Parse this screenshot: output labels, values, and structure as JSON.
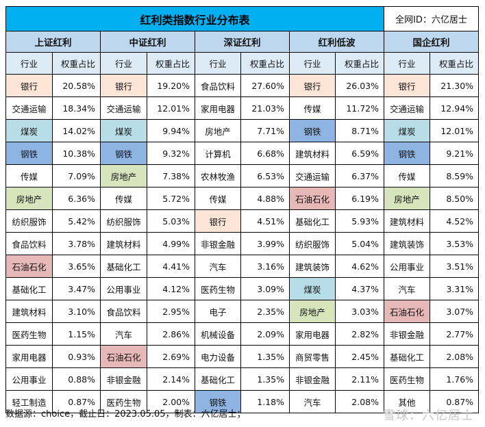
{
  "title": "红利类指数行业分布表",
  "author_id": "全网ID：六亿居士",
  "column_headers": {
    "industry": "行业",
    "weight": "权重占比"
  },
  "highlight_colors": {
    "peach": "#fce4d6",
    "lightblue": "#b7dee8",
    "blue": "#8eb4e3",
    "green": "#d8e4bc",
    "pink": "#e6b8b7"
  },
  "indices": [
    {
      "name": "上证红利",
      "rows": [
        {
          "industry": "银行",
          "weight": "20.58%",
          "color": "peach"
        },
        {
          "industry": "交通运输",
          "weight": "18.34%",
          "color": ""
        },
        {
          "industry": "煤炭",
          "weight": "14.02%",
          "color": "lightblue"
        },
        {
          "industry": "钢铁",
          "weight": "10.38%",
          "color": "blue"
        },
        {
          "industry": "传媒",
          "weight": "7.09%",
          "color": ""
        },
        {
          "industry": "房地产",
          "weight": "6.36%",
          "color": "green"
        },
        {
          "industry": "纺织服饰",
          "weight": "5.42%",
          "color": ""
        },
        {
          "industry": "食品饮料",
          "weight": "3.78%",
          "color": ""
        },
        {
          "industry": "石油石化",
          "weight": "3.65%",
          "color": "pink"
        },
        {
          "industry": "基础化工",
          "weight": "3.47%",
          "color": ""
        },
        {
          "industry": "建筑材料",
          "weight": "3.10%",
          "color": ""
        },
        {
          "industry": "医药生物",
          "weight": "1.15%",
          "color": ""
        },
        {
          "industry": "家用电器",
          "weight": "0.93%",
          "color": ""
        },
        {
          "industry": "公用事业",
          "weight": "0.88%",
          "color": ""
        },
        {
          "industry": "轻工制造",
          "weight": "0.87%",
          "color": ""
        }
      ]
    },
    {
      "name": "中证红利",
      "rows": [
        {
          "industry": "银行",
          "weight": "19.20%",
          "color": "peach"
        },
        {
          "industry": "交通运输",
          "weight": "12.01%",
          "color": ""
        },
        {
          "industry": "煤炭",
          "weight": "9.94%",
          "color": "lightblue"
        },
        {
          "industry": "钢铁",
          "weight": "9.32%",
          "color": "blue"
        },
        {
          "industry": "房地产",
          "weight": "7.38%",
          "color": "green"
        },
        {
          "industry": "传媒",
          "weight": "5.72%",
          "color": ""
        },
        {
          "industry": "纺织服饰",
          "weight": "5.03%",
          "color": ""
        },
        {
          "industry": "建筑材料",
          "weight": "4.99%",
          "color": ""
        },
        {
          "industry": "基础化工",
          "weight": "4.41%",
          "color": ""
        },
        {
          "industry": "公用事业",
          "weight": "4.12%",
          "color": ""
        },
        {
          "industry": "食品饮料",
          "weight": "2.95%",
          "color": ""
        },
        {
          "industry": "汽车",
          "weight": "2.86%",
          "color": ""
        },
        {
          "industry": "石油石化",
          "weight": "2.69%",
          "color": "pink"
        },
        {
          "industry": "非银金融",
          "weight": "2.14%",
          "color": ""
        },
        {
          "industry": "医药生物",
          "weight": "2.00%",
          "color": ""
        }
      ]
    },
    {
      "name": "深证红利",
      "rows": [
        {
          "industry": "食品饮料",
          "weight": "27.60%",
          "color": ""
        },
        {
          "industry": "家用电器",
          "weight": "21.03%",
          "color": ""
        },
        {
          "industry": "房地产",
          "weight": "7.71%",
          "color": ""
        },
        {
          "industry": "计算机",
          "weight": "6.68%",
          "color": ""
        },
        {
          "industry": "农林牧渔",
          "weight": "6.53%",
          "color": ""
        },
        {
          "industry": "传媒",
          "weight": "4.88%",
          "color": ""
        },
        {
          "industry": "银行",
          "weight": "4.51%",
          "color": "peach"
        },
        {
          "industry": "非银金融",
          "weight": "3.99%",
          "color": ""
        },
        {
          "industry": "汽车",
          "weight": "3.16%",
          "color": ""
        },
        {
          "industry": "医药生物",
          "weight": "3.09%",
          "color": ""
        },
        {
          "industry": "电子",
          "weight": "2.35%",
          "color": ""
        },
        {
          "industry": "机械设备",
          "weight": "2.09%",
          "color": ""
        },
        {
          "industry": "电力设备",
          "weight": "1.35%",
          "color": ""
        },
        {
          "industry": "基础化工",
          "weight": "1.35%",
          "color": ""
        },
        {
          "industry": "钢铁",
          "weight": "1.18%",
          "color": "blue"
        }
      ]
    },
    {
      "name": "红利低波",
      "rows": [
        {
          "industry": "银行",
          "weight": "26.03%",
          "color": "peach"
        },
        {
          "industry": "传媒",
          "weight": "11.72%",
          "color": ""
        },
        {
          "industry": "钢铁",
          "weight": "8.71%",
          "color": "blue"
        },
        {
          "industry": "建筑材料",
          "weight": "6.59%",
          "color": ""
        },
        {
          "industry": "交通运输",
          "weight": "6.37%",
          "color": ""
        },
        {
          "industry": "石油石化",
          "weight": "6.19%",
          "color": "pink"
        },
        {
          "industry": "基础化工",
          "weight": "5.93%",
          "color": ""
        },
        {
          "industry": "纺织服饰",
          "weight": "5.04%",
          "color": ""
        },
        {
          "industry": "建筑装饰",
          "weight": "4.62%",
          "color": ""
        },
        {
          "industry": "煤炭",
          "weight": "4.37%",
          "color": "lightblue"
        },
        {
          "industry": "房地产",
          "weight": "3.03%",
          "color": "green"
        },
        {
          "industry": "家用电器",
          "weight": "2.82%",
          "color": ""
        },
        {
          "industry": "商贸零售",
          "weight": "2.45%",
          "color": ""
        },
        {
          "industry": "非银金融",
          "weight": "2.11%",
          "color": ""
        },
        {
          "industry": "汽车",
          "weight": "2.08%",
          "color": ""
        }
      ]
    },
    {
      "name": "国企红利",
      "rows": [
        {
          "industry": "银行",
          "weight": "21.30%",
          "color": "peach"
        },
        {
          "industry": "交通运输",
          "weight": "12.94%",
          "color": ""
        },
        {
          "industry": "煤炭",
          "weight": "12.01%",
          "color": "lightblue"
        },
        {
          "industry": "钢铁",
          "weight": "9.21%",
          "color": "blue"
        },
        {
          "industry": "传媒",
          "weight": "8.59%",
          "color": ""
        },
        {
          "industry": "房地产",
          "weight": "8.50%",
          "color": "green"
        },
        {
          "industry": "建筑材料",
          "weight": "4.52%",
          "color": ""
        },
        {
          "industry": "建筑装饰",
          "weight": "3.53%",
          "color": ""
        },
        {
          "industry": "公用事业",
          "weight": "3.51%",
          "color": ""
        },
        {
          "industry": "汽车",
          "weight": "3.31%",
          "color": ""
        },
        {
          "industry": "石油石化",
          "weight": "3.07%",
          "color": "pink"
        },
        {
          "industry": "非银金融",
          "weight": "2.77%",
          "color": ""
        },
        {
          "industry": "基础化工",
          "weight": "2.08%",
          "color": ""
        },
        {
          "industry": "医药生物",
          "weight": "1.76%",
          "color": ""
        },
        {
          "industry": "其他",
          "weight": "0.87%",
          "color": ""
        }
      ]
    }
  ],
  "footer": "数据源：choice，截止日：2023.05.05，制表：六亿居士；",
  "watermark": "雪球：六亿居士"
}
